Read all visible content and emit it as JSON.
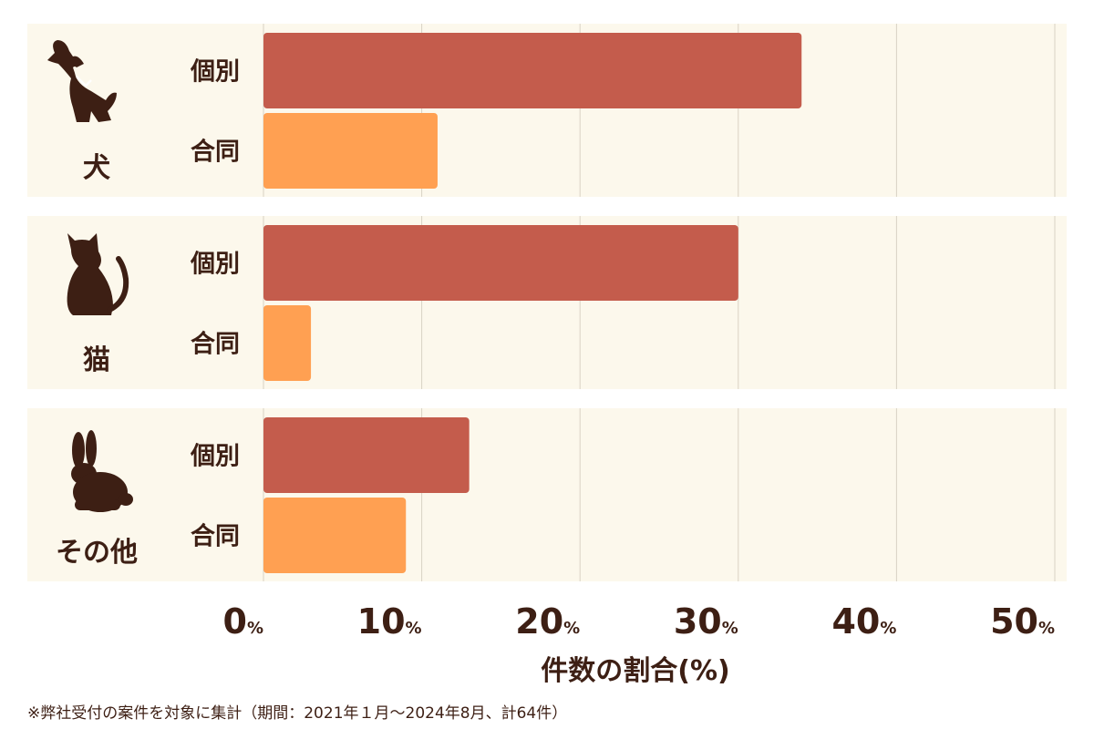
{
  "chart_data": {
    "type": "bar",
    "orientation": "horizontal",
    "groups": [
      {
        "label": "犬",
        "icon": "dog-icon",
        "categories": [
          "個別",
          "合同"
        ],
        "values": [
          34,
          11
        ]
      },
      {
        "label": "猫",
        "icon": "cat-icon",
        "categories": [
          "個別",
          "合同"
        ],
        "values": [
          30,
          3
        ]
      },
      {
        "label": "その他",
        "icon": "rabbit-icon",
        "categories": [
          "個別",
          "合同"
        ],
        "values": [
          13,
          9
        ]
      }
    ],
    "xlim": [
      0,
      50
    ],
    "xticks": [
      0,
      10,
      20,
      30,
      40,
      50
    ],
    "tick_unit": "%",
    "xlabel": "件数の割合(%)",
    "grid": true,
    "colors": {
      "個別": "#c45c4c",
      "合同": "#ffa052",
      "panel": "#fcf8ec",
      "text": "#3d1f14",
      "grid": "#d9d2c4"
    }
  },
  "footnote": "※弊社受付の案件を対象に集計（期間：2021年１月〜2024年8月、計64件）"
}
